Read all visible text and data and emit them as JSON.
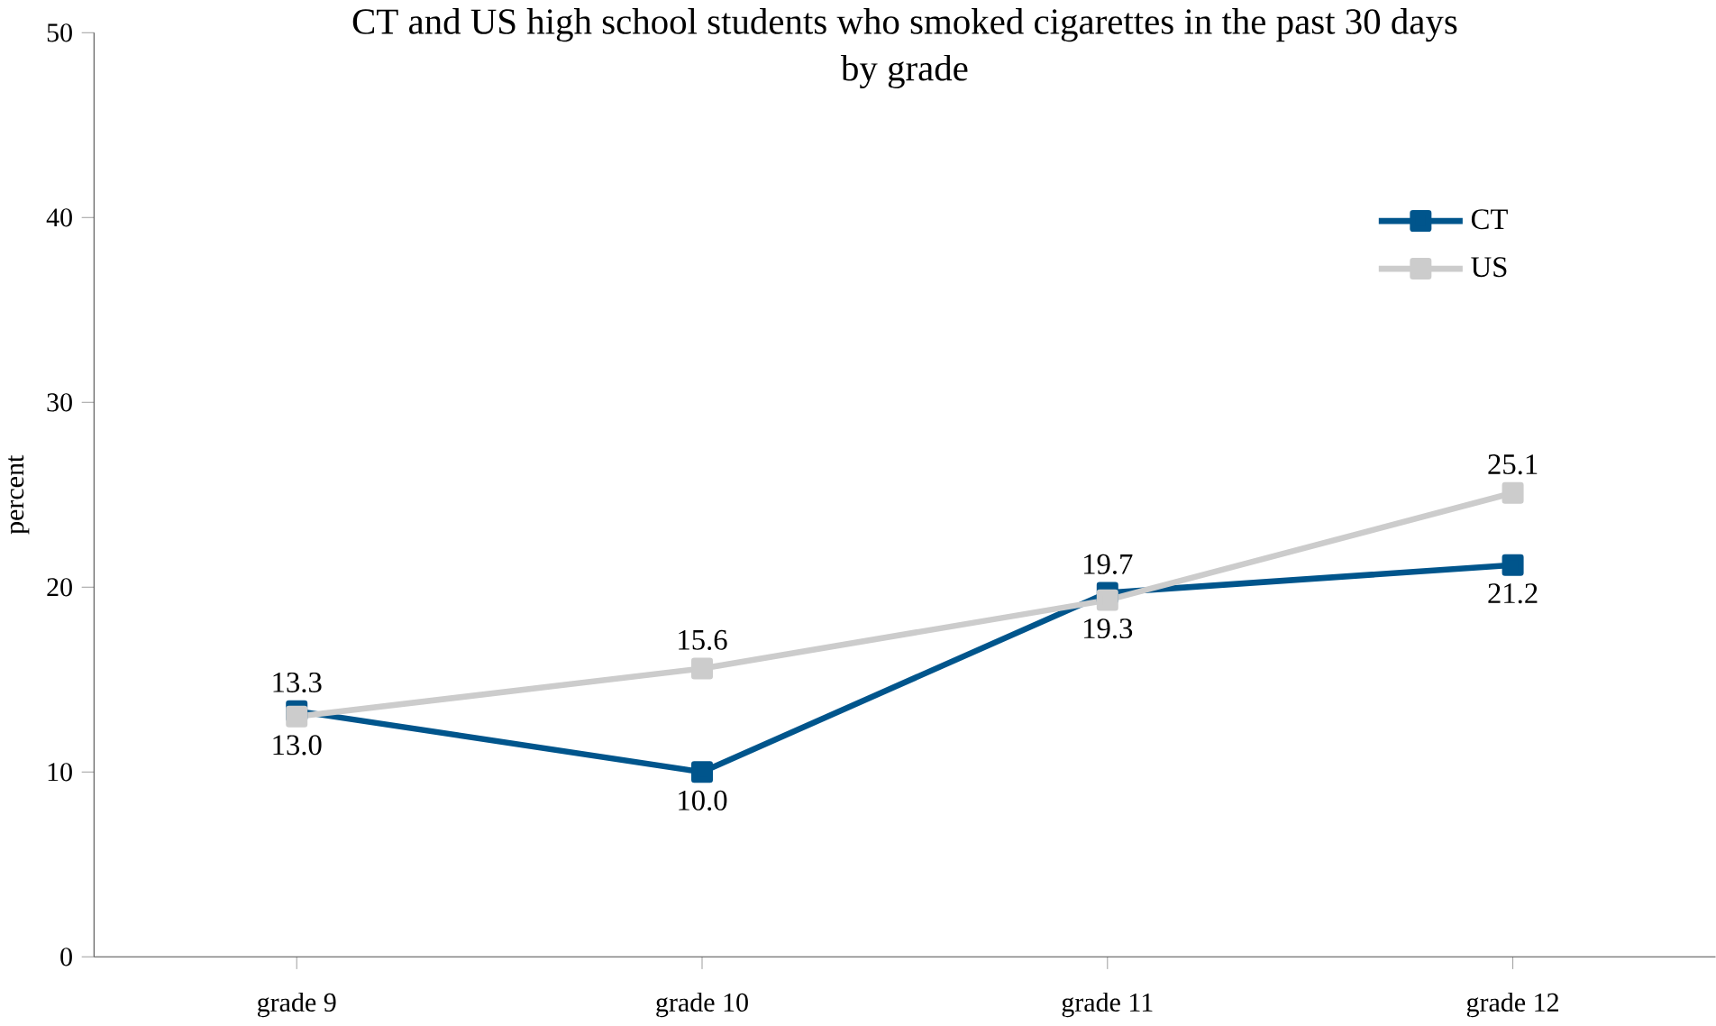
{
  "chart_data": {
    "type": "line",
    "title": "CT and US high school students who smoked cigarettes in the past 30 days",
    "subtitle": "by grade",
    "ylabel": "percent",
    "categories": [
      "grade 9",
      "grade 10",
      "grade 11",
      "grade 12"
    ],
    "series": [
      {
        "name": "CT",
        "color": "#00558c",
        "values": [
          13.3,
          10.0,
          19.7,
          21.2
        ],
        "value_labels": [
          "13.3",
          "10.0",
          "19.7",
          "21.2"
        ]
      },
      {
        "name": "US",
        "color": "#cccccc",
        "values": [
          13.0,
          15.6,
          19.3,
          25.1
        ],
        "value_labels": [
          "13.0",
          "15.6",
          "19.3",
          "25.1"
        ]
      }
    ],
    "ylim": [
      0,
      50
    ],
    "yticks": [
      0,
      10,
      20,
      30,
      40,
      50
    ],
    "grid": false,
    "legend": "top right",
    "marker": "square",
    "line_style": "solid"
  }
}
